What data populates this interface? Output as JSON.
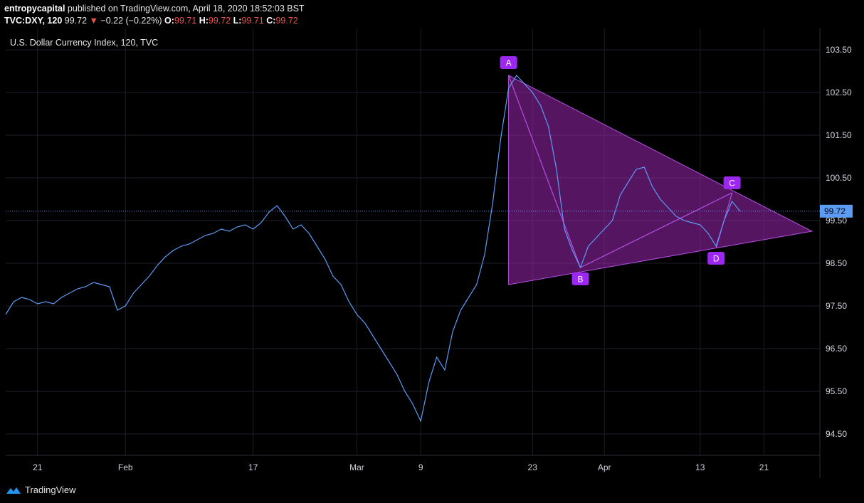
{
  "header": {
    "publisher": "entropycapital",
    "published_text": "published on TradingView.com, April 18, 2020 18:52:03 BST",
    "symbol": "TVC:DXY, 120",
    "last": "99.72",
    "change": "−0.22 (−0.22%)",
    "open_label": "O:",
    "open": "99.71",
    "high_label": "H:",
    "high": "99.72",
    "low_label": "L:",
    "low": "99.71",
    "close_label": "C:",
    "close": "99.72"
  },
  "legend_title": "U.S. Dollar Currency Index, 120, TVC",
  "footer": {
    "brand": "TradingView"
  },
  "colors": {
    "line": "#5b9cf6",
    "pattern_fill": "#9c27b0",
    "pattern_edge": "#b44fe3",
    "label_bg": "#9c27f0",
    "price_tag": "#5b9cf6",
    "down": "#ef5350",
    "grid": "#1c1f26"
  },
  "chart_data": {
    "type": "line",
    "title": "U.S. Dollar Currency Index, 120, TVC",
    "y_ticks": [
      "103.50",
      "102.50",
      "101.50",
      "100.50",
      "99.50",
      "98.50",
      "97.50",
      "96.50",
      "95.50",
      "94.50"
    ],
    "y_tick_values": [
      103.5,
      102.5,
      101.5,
      100.5,
      99.5,
      98.5,
      97.5,
      96.5,
      95.5,
      94.5
    ],
    "ylim": [
      94.0,
      104.0
    ],
    "x_ticks": [
      {
        "label": "21",
        "date": "2020-01-21"
      },
      {
        "label": "Feb",
        "date": "2020-02-01"
      },
      {
        "label": "17",
        "date": "2020-02-17"
      },
      {
        "label": "Mar",
        "date": "2020-03-01"
      },
      {
        "label": "9",
        "date": "2020-03-09"
      },
      {
        "label": "23",
        "date": "2020-03-23"
      },
      {
        "label": "Apr",
        "date": "2020-04-01"
      },
      {
        "label": "13",
        "date": "2020-04-13"
      },
      {
        "label": "21",
        "date": "2020-04-21"
      }
    ],
    "xlim": [
      "2020-01-17",
      "2020-04-28"
    ],
    "current_price": 99.72,
    "current_price_label": "99.72",
    "series": [
      {
        "values": [
          [
            "2020-01-17",
            97.3
          ],
          [
            "2020-01-18",
            97.6
          ],
          [
            "2020-01-19",
            97.7
          ],
          [
            "2020-01-20",
            97.65
          ],
          [
            "2020-01-21",
            97.55
          ],
          [
            "2020-01-22",
            97.6
          ],
          [
            "2020-01-23",
            97.55
          ],
          [
            "2020-01-24",
            97.7
          ],
          [
            "2020-01-25",
            97.8
          ],
          [
            "2020-01-26",
            97.9
          ],
          [
            "2020-01-27",
            97.95
          ],
          [
            "2020-01-28",
            98.05
          ],
          [
            "2020-01-29",
            98.0
          ],
          [
            "2020-01-30",
            97.95
          ],
          [
            "2020-01-31",
            97.4
          ],
          [
            "2020-02-01",
            97.5
          ],
          [
            "2020-02-02",
            97.8
          ],
          [
            "2020-02-03",
            98.0
          ],
          [
            "2020-02-04",
            98.2
          ],
          [
            "2020-02-05",
            98.45
          ],
          [
            "2020-02-06",
            98.65
          ],
          [
            "2020-02-07",
            98.8
          ],
          [
            "2020-02-08",
            98.9
          ],
          [
            "2020-02-09",
            98.95
          ],
          [
            "2020-02-10",
            99.05
          ],
          [
            "2020-02-11",
            99.15
          ],
          [
            "2020-02-12",
            99.2
          ],
          [
            "2020-02-13",
            99.3
          ],
          [
            "2020-02-14",
            99.25
          ],
          [
            "2020-02-15",
            99.35
          ],
          [
            "2020-02-16",
            99.4
          ],
          [
            "2020-02-17",
            99.3
          ],
          [
            "2020-02-18",
            99.45
          ],
          [
            "2020-02-19",
            99.7
          ],
          [
            "2020-02-20",
            99.85
          ],
          [
            "2020-02-21",
            99.6
          ],
          [
            "2020-02-22",
            99.3
          ],
          [
            "2020-02-23",
            99.4
          ],
          [
            "2020-02-24",
            99.2
          ],
          [
            "2020-02-25",
            98.9
          ],
          [
            "2020-02-26",
            98.6
          ],
          [
            "2020-02-27",
            98.2
          ],
          [
            "2020-02-28",
            98.0
          ],
          [
            "2020-02-29",
            97.6
          ],
          [
            "2020-03-01",
            97.3
          ],
          [
            "2020-03-02",
            97.1
          ],
          [
            "2020-03-03",
            96.8
          ],
          [
            "2020-03-04",
            96.5
          ],
          [
            "2020-03-05",
            96.2
          ],
          [
            "2020-03-06",
            95.9
          ],
          [
            "2020-03-07",
            95.5
          ],
          [
            "2020-03-08",
            95.2
          ],
          [
            "2020-03-09",
            94.8
          ],
          [
            "2020-03-10",
            95.7
          ],
          [
            "2020-03-11",
            96.3
          ],
          [
            "2020-03-12",
            96.0
          ],
          [
            "2020-03-13",
            96.9
          ],
          [
            "2020-03-14",
            97.4
          ],
          [
            "2020-03-15",
            97.7
          ],
          [
            "2020-03-16",
            98.0
          ],
          [
            "2020-03-17",
            98.7
          ],
          [
            "2020-03-18",
            99.9
          ],
          [
            "2020-03-19",
            101.4
          ],
          [
            "2020-03-20",
            102.6
          ],
          [
            "2020-03-21",
            102.9
          ],
          [
            "2020-03-22",
            102.7
          ],
          [
            "2020-03-23",
            102.5
          ],
          [
            "2020-03-24",
            102.2
          ],
          [
            "2020-03-25",
            101.7
          ],
          [
            "2020-03-26",
            100.7
          ],
          [
            "2020-03-27",
            99.3
          ],
          [
            "2020-03-28",
            98.8
          ],
          [
            "2020-03-29",
            98.4
          ],
          [
            "2020-03-30",
            98.9
          ],
          [
            "2020-03-31",
            99.1
          ],
          [
            "2020-04-01",
            99.3
          ],
          [
            "2020-04-02",
            99.5
          ],
          [
            "2020-04-03",
            100.1
          ],
          [
            "2020-04-04",
            100.4
          ],
          [
            "2020-04-05",
            100.7
          ],
          [
            "2020-04-06",
            100.75
          ],
          [
            "2020-04-07",
            100.3
          ],
          [
            "2020-04-08",
            100.0
          ],
          [
            "2020-04-09",
            99.8
          ],
          [
            "2020-04-10",
            99.6
          ],
          [
            "2020-04-11",
            99.5
          ],
          [
            "2020-04-12",
            99.45
          ],
          [
            "2020-04-13",
            99.4
          ],
          [
            "2020-04-14",
            99.2
          ],
          [
            "2020-04-15",
            98.9
          ],
          [
            "2020-04-16",
            99.5
          ],
          [
            "2020-04-17",
            99.95
          ],
          [
            "2020-04-18",
            99.72
          ]
        ]
      }
    ],
    "pattern": {
      "type": "ABCD",
      "points": [
        {
          "label": "A",
          "date": "2020-03-20",
          "price": 102.9
        },
        {
          "label": "B",
          "date": "2020-03-29",
          "price": 98.4
        },
        {
          "label": "C",
          "date": "2020-04-17",
          "price": 100.15
        },
        {
          "label": "D",
          "date": "2020-04-15",
          "price": 98.85
        }
      ],
      "triangle": [
        {
          "date": "2020-03-20",
          "price": 102.9
        },
        {
          "date": "2020-03-20",
          "price": 98.0
        },
        {
          "date": "2020-04-27",
          "price": 99.25
        }
      ]
    }
  }
}
